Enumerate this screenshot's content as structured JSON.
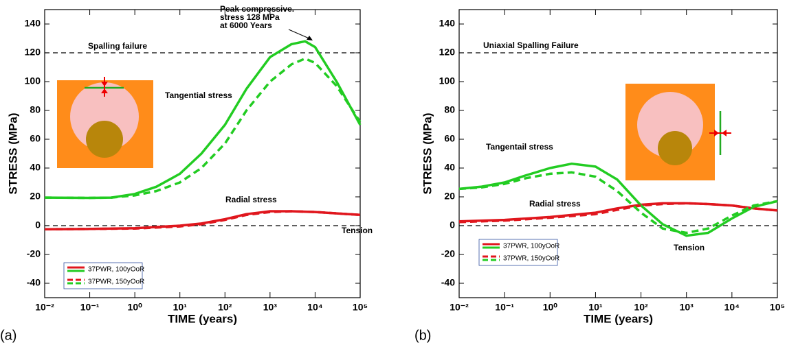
{
  "chart_data": [
    {
      "type": "line",
      "panel_label": "(a)",
      "x_label": "TIME (years)",
      "y_label": "STRESS (MPa)",
      "xscale": "log",
      "xlim": [
        0.01,
        100000
      ],
      "xticks": [
        {
          "value": 0.01,
          "label": "10⁻²"
        },
        {
          "value": 0.1,
          "label": "10⁻¹"
        },
        {
          "value": 1,
          "label": "10⁰"
        },
        {
          "value": 10,
          "label": "10¹"
        },
        {
          "value": 100,
          "label": "10²"
        },
        {
          "value": 1000,
          "label": "10³"
        },
        {
          "value": 10000,
          "label": "10⁴"
        },
        {
          "value": 100000,
          "label": "10⁵"
        }
      ],
      "ylim": [
        -50,
        150
      ],
      "yticks": [
        -40,
        -20,
        0,
        20,
        40,
        60,
        80,
        100,
        120,
        140
      ],
      "hlines": [
        120,
        0
      ],
      "annotations": [
        "Spalling failure",
        "Tangential stress",
        "Radial stress",
        "Tension",
        "Peak compressive.",
        "stress 128 MPa",
        "at 6000 Years"
      ],
      "series": [
        {
          "name": "37PWR, 100yOoR",
          "color": "#e0161d",
          "dashed": false,
          "x": [
            0.01,
            0.1,
            1,
            10,
            30,
            100,
            300,
            1000,
            3000,
            10000,
            30000,
            100000
          ],
          "values": [
            -2.5,
            -2.3,
            -1.8,
            0,
            1.5,
            4.5,
            8,
            10,
            10,
            9.5,
            8.5,
            7.5
          ]
        },
        {
          "name": "37PWR, 100yOoR",
          "color": "#22cc22",
          "dashed": false,
          "x": [
            0.01,
            0.1,
            0.3,
            1,
            3,
            10,
            30,
            100,
            300,
            1000,
            3000,
            6000,
            10000,
            30000,
            100000
          ],
          "values": [
            19.5,
            19.3,
            19.5,
            22,
            27,
            36,
            50,
            70,
            95,
            117,
            126,
            128,
            124,
            100,
            70
          ]
        },
        {
          "name": "37PWR, 150yOoR",
          "color": "#e0161d",
          "dashed": true,
          "x": [
            0.01,
            0.1,
            1,
            10,
            30,
            100,
            300,
            1000,
            3000,
            10000,
            30000,
            100000
          ],
          "values": [
            -2.5,
            -2.3,
            -2,
            -0.5,
            1,
            4,
            7.5,
            9.5,
            10,
            9.5,
            8.5,
            7.5
          ]
        },
        {
          "name": "37PWR, 150yOoR",
          "color": "#22cc22",
          "dashed": true,
          "x": [
            0.01,
            0.1,
            0.3,
            1,
            3,
            10,
            30,
            100,
            300,
            1000,
            3000,
            6000,
            10000,
            30000,
            100000
          ],
          "values": [
            19.5,
            19.3,
            19.5,
            21,
            24,
            30,
            40,
            57,
            80,
            100,
            112,
            116,
            113,
            97,
            72
          ]
        }
      ]
    },
    {
      "type": "line",
      "panel_label": "(b)",
      "x_label": "TIME (years)",
      "y_label": "STRESS (MPa)",
      "xscale": "log",
      "xlim": [
        0.01,
        100000
      ],
      "xticks": [
        {
          "value": 0.01,
          "label": "10⁻²"
        },
        {
          "value": 0.1,
          "label": "10⁻¹"
        },
        {
          "value": 1,
          "label": "10⁰"
        },
        {
          "value": 10,
          "label": "10¹"
        },
        {
          "value": 100,
          "label": "10²"
        },
        {
          "value": 1000,
          "label": "10³"
        },
        {
          "value": 10000,
          "label": "10⁴"
        },
        {
          "value": 100000,
          "label": "10⁵"
        }
      ],
      "ylim": [
        -50,
        150
      ],
      "yticks": [
        -40,
        -20,
        0,
        20,
        40,
        60,
        80,
        100,
        120,
        140
      ],
      "hlines": [
        120,
        0
      ],
      "annotations": [
        "Uniaxial Spalling Failure",
        "Tangentail stress",
        "Radial stress",
        "Tension"
      ],
      "series": [
        {
          "name": "37PWR, 100yOoR",
          "color": "#e0161d",
          "dashed": false,
          "x": [
            0.01,
            0.1,
            1,
            10,
            30,
            100,
            300,
            1000,
            3000,
            10000,
            30000,
            100000
          ],
          "values": [
            3,
            4,
            6,
            9,
            12,
            14.5,
            15.5,
            15.5,
            15,
            14,
            12,
            10.5
          ]
        },
        {
          "name": "37PWR, 100yOoR",
          "color": "#22cc22",
          "dashed": false,
          "x": [
            0.01,
            0.03,
            0.1,
            0.3,
            1,
            3,
            10,
            30,
            100,
            300,
            1000,
            3000,
            10000,
            30000,
            100000
          ],
          "values": [
            25.5,
            27,
            30,
            35,
            40,
            43,
            41,
            32,
            14,
            1,
            -7,
            -5,
            5,
            13,
            17
          ]
        },
        {
          "name": "37PWR, 150yOoR",
          "color": "#e0161d",
          "dashed": true,
          "x": [
            0.01,
            0.1,
            1,
            10,
            30,
            100,
            300,
            1000,
            3000,
            10000,
            30000,
            100000
          ],
          "values": [
            2.5,
            3.5,
            5.5,
            8,
            11,
            14,
            15,
            15.5,
            15,
            14,
            12,
            10.5
          ]
        },
        {
          "name": "37PWR, 150yOoR",
          "color": "#22cc22",
          "dashed": true,
          "x": [
            0.01,
            0.03,
            0.1,
            0.3,
            1,
            3,
            10,
            30,
            100,
            300,
            1000,
            3000,
            10000,
            30000,
            100000
          ],
          "values": [
            25.5,
            26.5,
            29,
            33,
            36,
            37,
            34,
            24,
            9,
            -2,
            -5,
            -2,
            7,
            14,
            17
          ]
        }
      ]
    }
  ]
}
